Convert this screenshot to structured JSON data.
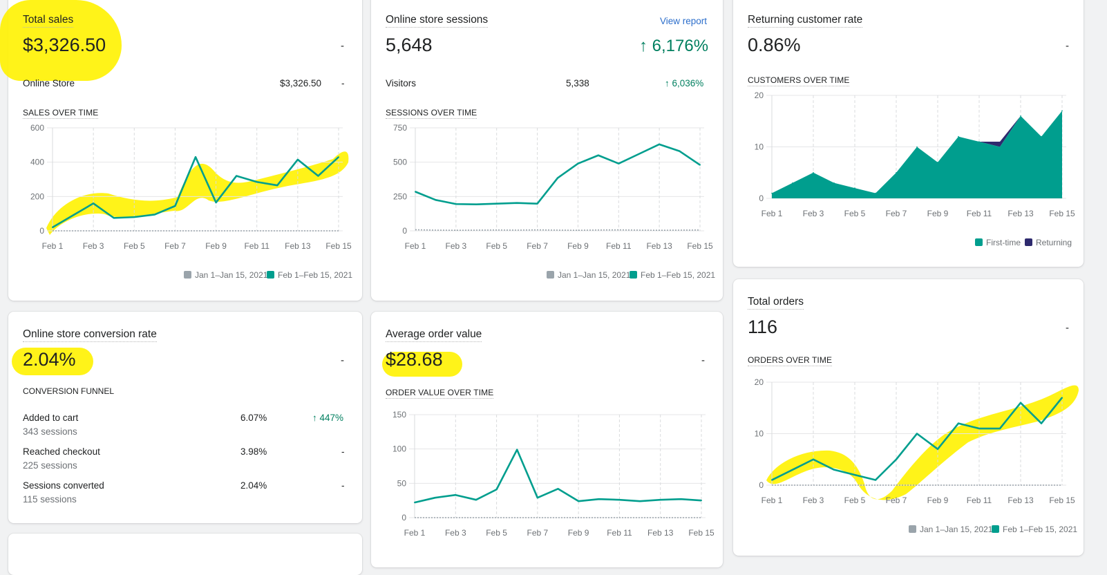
{
  "colors": {
    "accent": "#47c1bf",
    "current": "#009e8e",
    "previous": "#9aa4ab",
    "returning": "#2e2a6e",
    "positive": "#007f5f",
    "link": "#2c6ecb",
    "highlight": "#fff200"
  },
  "cards": {
    "total_sales": {
      "title": "Total sales",
      "value": "$3,326.50",
      "dash": "-",
      "row_label": "Online Store",
      "row_value": "$3,326.50",
      "row_dash": "-",
      "chart_title": "SALES OVER TIME",
      "legend": [
        "Jan 1–Jan 15, 2021",
        "Feb 1–Feb 15, 2021"
      ]
    },
    "sessions": {
      "title": "Online store sessions",
      "link": "View report",
      "value": "5,648",
      "change": "↑ 6,176%",
      "row_label": "Visitors",
      "row_value": "5,338",
      "row_change": "↑ 6,036%",
      "chart_title": "SESSIONS OVER TIME",
      "legend": [
        "Jan 1–Jan 15, 2021",
        "Feb 1–Feb 15, 2021"
      ]
    },
    "returning": {
      "title": "Returning customer rate",
      "value": "0.86%",
      "dash": "-",
      "chart_title": "CUSTOMERS OVER TIME",
      "legend": [
        "First-time",
        "Returning"
      ]
    },
    "conversion": {
      "title": "Online store conversion rate",
      "value": "2.04%",
      "dash": "-",
      "funnel_title": "CONVERSION FUNNEL",
      "rows": [
        {
          "label": "Added to cart",
          "sessions": "343 sessions",
          "rate": "6.07%",
          "change": "↑ 447%"
        },
        {
          "label": "Reached checkout",
          "sessions": "225 sessions",
          "rate": "3.98%",
          "change": "-"
        },
        {
          "label": "Sessions converted",
          "sessions": "115 sessions",
          "rate": "2.04%",
          "change": "-"
        }
      ]
    },
    "aov": {
      "title": "Average order value",
      "value": "$28.68",
      "dash": "-",
      "chart_title": "ORDER VALUE OVER TIME"
    },
    "orders": {
      "title": "Total orders",
      "value": "116",
      "dash": "-",
      "chart_title": "ORDERS OVER TIME",
      "legend": [
        "Jan 1–Jan 15, 2021",
        "Feb 1–Feb 15, 2021"
      ]
    }
  },
  "chart_data": [
    {
      "type": "line",
      "id": "sales",
      "x": [
        "Feb 1",
        "Feb 2",
        "Feb 3",
        "Feb 4",
        "Feb 5",
        "Feb 6",
        "Feb 7",
        "Feb 8",
        "Feb 9",
        "Feb 10",
        "Feb 11",
        "Feb 12",
        "Feb 13",
        "Feb 14",
        "Feb 15"
      ],
      "xticks": [
        "Feb 1",
        "Feb 3",
        "Feb 5",
        "Feb 7",
        "Feb 9",
        "Feb 11",
        "Feb 13",
        "Feb 15"
      ],
      "yticks": [
        0,
        200,
        400,
        600
      ],
      "ylim": [
        0,
        600
      ],
      "series": [
        {
          "name": "Jan 1–Jan 15, 2021",
          "values": [
            0,
            0,
            0,
            0,
            0,
            0,
            0,
            0,
            0,
            0,
            0,
            0,
            0,
            0,
            0
          ]
        },
        {
          "name": "Feb 1–Feb 15, 2021",
          "values": [
            20,
            90,
            160,
            75,
            80,
            95,
            145,
            430,
            165,
            320,
            285,
            265,
            415,
            320,
            430
          ]
        }
      ]
    },
    {
      "type": "line",
      "id": "sessions",
      "x": [
        "Feb 1",
        "Feb 2",
        "Feb 3",
        "Feb 4",
        "Feb 5",
        "Feb 6",
        "Feb 7",
        "Feb 8",
        "Feb 9",
        "Feb 10",
        "Feb 11",
        "Feb 12",
        "Feb 13",
        "Feb 14",
        "Feb 15"
      ],
      "xticks": [
        "Feb 1",
        "Feb 3",
        "Feb 5",
        "Feb 7",
        "Feb 9",
        "Feb 11",
        "Feb 13",
        "Feb 15"
      ],
      "yticks": [
        0,
        250,
        500,
        750
      ],
      "ylim": [
        0,
        750
      ],
      "series": [
        {
          "name": "Jan 1–Jan 15, 2021",
          "values": [
            8,
            5,
            4,
            5,
            6,
            5,
            7,
            5,
            4,
            6,
            7,
            5,
            4,
            5,
            6
          ]
        },
        {
          "name": "Feb 1–Feb 15, 2021",
          "values": [
            285,
            225,
            195,
            193,
            198,
            203,
            198,
            385,
            490,
            550,
            490,
            560,
            630,
            580,
            480
          ]
        }
      ]
    },
    {
      "type": "area",
      "id": "customers",
      "x": [
        "Feb 1",
        "Feb 2",
        "Feb 3",
        "Feb 4",
        "Feb 5",
        "Feb 6",
        "Feb 7",
        "Feb 8",
        "Feb 9",
        "Feb 10",
        "Feb 11",
        "Feb 12",
        "Feb 13",
        "Feb 14",
        "Feb 15"
      ],
      "xticks": [
        "Feb 1",
        "Feb 3",
        "Feb 5",
        "Feb 7",
        "Feb 9",
        "Feb 11",
        "Feb 13",
        "Feb 15"
      ],
      "yticks": [
        0,
        10,
        20
      ],
      "ylim": [
        0,
        20
      ],
      "series": [
        {
          "name": "First-time",
          "values": [
            1,
            3,
            5,
            3,
            2,
            1,
            5,
            10,
            7,
            12,
            11,
            10,
            16,
            12,
            17
          ]
        },
        {
          "name": "Returning",
          "values": [
            0,
            0,
            0,
            0,
            0,
            0,
            0,
            0,
            0,
            0,
            0,
            1,
            0,
            0,
            0
          ]
        }
      ]
    },
    {
      "type": "line",
      "id": "order_value",
      "x": [
        "Feb 1",
        "Feb 2",
        "Feb 3",
        "Feb 4",
        "Feb 5",
        "Feb 6",
        "Feb 7",
        "Feb 8",
        "Feb 9",
        "Feb 10",
        "Feb 11",
        "Feb 12",
        "Feb 13",
        "Feb 14",
        "Feb 15"
      ],
      "xticks": [
        "Feb 1",
        "Feb 3",
        "Feb 5",
        "Feb 7",
        "Feb 9",
        "Feb 11",
        "Feb 13",
        "Feb 15"
      ],
      "yticks": [
        0,
        50,
        100,
        150
      ],
      "ylim": [
        0,
        150
      ],
      "series": [
        {
          "name": "Jan 1–Jan 15, 2021",
          "values": [
            0,
            0,
            0,
            0,
            0,
            0,
            0,
            0,
            0,
            0,
            0,
            0,
            0,
            0,
            0
          ]
        },
        {
          "name": "Feb 1–Feb 15, 2021",
          "values": [
            22,
            29,
            33,
            26,
            41,
            99,
            29,
            42,
            24,
            27,
            26,
            24,
            26,
            27,
            25
          ]
        }
      ]
    },
    {
      "type": "line",
      "id": "orders",
      "x": [
        "Feb 1",
        "Feb 2",
        "Feb 3",
        "Feb 4",
        "Feb 5",
        "Feb 6",
        "Feb 7",
        "Feb 8",
        "Feb 9",
        "Feb 10",
        "Feb 11",
        "Feb 12",
        "Feb 13",
        "Feb 14",
        "Feb 15"
      ],
      "xticks": [
        "Feb 1",
        "Feb 3",
        "Feb 5",
        "Feb 7",
        "Feb 9",
        "Feb 11",
        "Feb 13",
        "Feb 15"
      ],
      "yticks": [
        0,
        10,
        20
      ],
      "ylim": [
        0,
        20
      ],
      "series": [
        {
          "name": "Jan 1–Jan 15, 2021",
          "values": [
            0,
            0,
            0,
            0,
            0,
            0,
            0,
            0,
            0,
            0,
            0,
            0,
            0,
            0,
            0
          ]
        },
        {
          "name": "Feb 1–Feb 15, 2021",
          "values": [
            1,
            3,
            5,
            3,
            2,
            1,
            5,
            10,
            7,
            12,
            11,
            11,
            16,
            12,
            17
          ]
        }
      ]
    }
  ]
}
